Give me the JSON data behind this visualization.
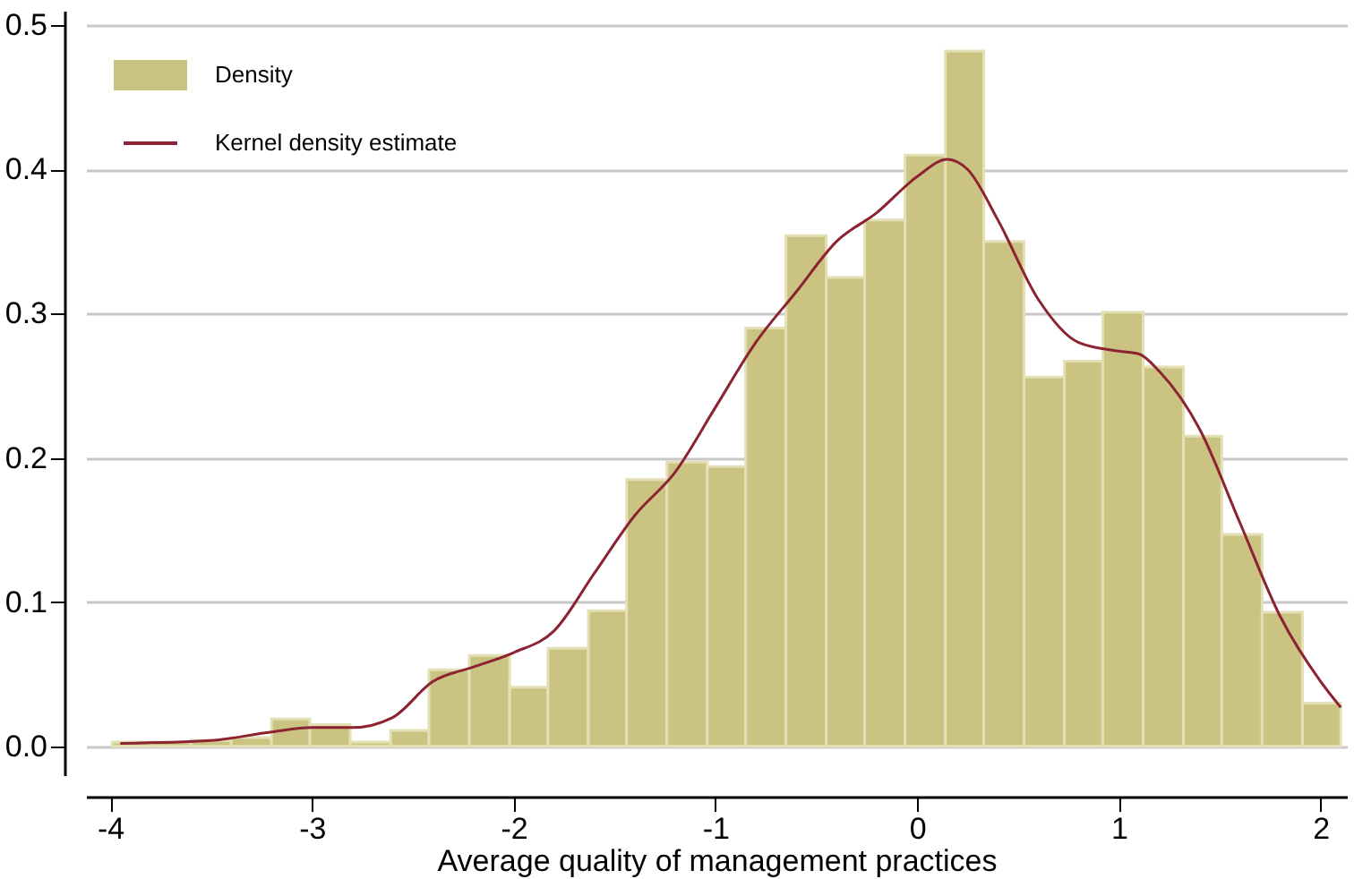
{
  "chart_data": {
    "type": "histogram",
    "xlabel": "Average quality of management practices",
    "bins": [
      -3.99,
      -3.79,
      -3.6,
      -3.4,
      -3.2,
      -3.01,
      -2.81,
      -2.61,
      -2.42,
      -2.22,
      -2.02,
      -1.83,
      -1.63,
      -1.44,
      -1.24,
      -1.04,
      -0.85,
      -0.65,
      -0.45,
      -0.26,
      -0.06,
      0.14,
      0.33,
      0.53,
      0.73,
      0.92,
      1.12,
      1.32,
      1.51,
      1.71,
      1.91,
      2.1
    ],
    "series": [
      {
        "name": "Density",
        "color": "#cbc382",
        "values": [
          0.003,
          0.003,
          0.004,
          0.006,
          0.019,
          0.015,
          0.003,
          0.011,
          0.053,
          0.063,
          0.041,
          0.068,
          0.094,
          0.185,
          0.197,
          0.194,
          0.29,
          0.354,
          0.325,
          0.365,
          0.41,
          0.482,
          0.35,
          0.256,
          0.267,
          0.301,
          0.263,
          0.215,
          0.147,
          0.093,
          0.03
        ]
      },
      {
        "name": "Kernel density estimate",
        "type": "line",
        "color": "#8b2332",
        "x": [
          -3.95,
          -3.5,
          -3.2,
          -3.0,
          -2.8,
          -2.6,
          -2.4,
          -2.2,
          -2.0,
          -1.8,
          -1.6,
          -1.4,
          -1.2,
          -1.0,
          -0.8,
          -0.6,
          -0.4,
          -0.2,
          0.0,
          0.15,
          0.25,
          0.4,
          0.6,
          0.8,
          1.0,
          1.1,
          1.2,
          1.4,
          1.6,
          1.8,
          2.0,
          2.1
        ],
        "values": [
          0.002,
          0.004,
          0.01,
          0.013,
          0.013,
          0.02,
          0.045,
          0.055,
          0.065,
          0.08,
          0.12,
          0.16,
          0.19,
          0.235,
          0.28,
          0.315,
          0.35,
          0.37,
          0.395,
          0.407,
          0.4,
          0.365,
          0.31,
          0.28,
          0.274,
          0.272,
          0.26,
          0.22,
          0.155,
          0.09,
          0.045,
          0.027
        ]
      }
    ],
    "xlim": [
      -4.12,
      2.13
    ],
    "xticks": [
      -4,
      -3,
      -2,
      -1,
      0,
      1,
      2
    ],
    "ylim": [
      -0.02,
      0.51
    ],
    "yticks": [
      {
        "value": 0,
        "label": "0.0"
      },
      {
        "value": 0.1,
        "label": "0.1"
      },
      {
        "value": 0.2,
        "label": "0.2"
      },
      {
        "value": 0.3,
        "label": "0.3"
      },
      {
        "value": 0.4,
        "label": "0.4"
      },
      {
        "value": 0.5,
        "label": "0.5"
      }
    ],
    "grid": "y",
    "legend": "top left"
  }
}
